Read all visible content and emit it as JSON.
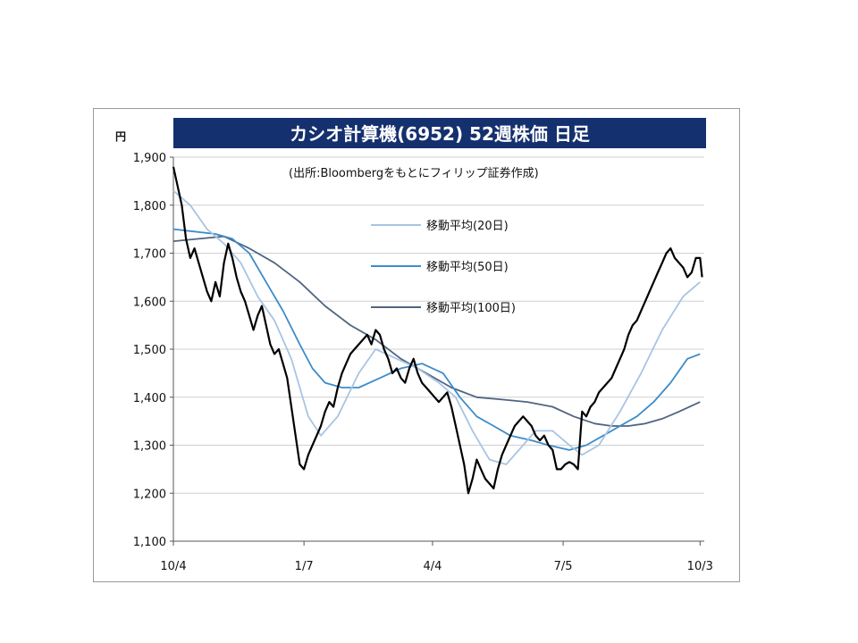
{
  "chart_data": {
    "type": "line",
    "title": "カシオ計算機(6952) 52週株価 日足",
    "subtitle": "(出所:Bloombergをもとにフィリップ証券作成)",
    "ylabel": "円",
    "xlabel": "",
    "ylim": [
      1100,
      1900
    ],
    "yticks": [
      "1,900",
      "1,800",
      "1,700",
      "1,600",
      "1,500",
      "1,400",
      "1,300",
      "1,200",
      "1,100"
    ],
    "xticks": [
      "10/4",
      "1/7",
      "4/4",
      "7/5",
      "10/3"
    ],
    "x_tick_positions": [
      0,
      62,
      123,
      185,
      250
    ],
    "x_range": [
      0,
      252
    ],
    "grid": true,
    "legend_position": "top-right",
    "colors": {
      "title_bg": "#15306e",
      "title_fg": "#ffffff",
      "price": "#000000",
      "ma20": "#a8c4e4",
      "ma50": "#3d8cc9",
      "ma100": "#4f6582",
      "grid": "#d0d0d0",
      "axis": "#555555"
    },
    "series": [
      {
        "key": "price",
        "name": "",
        "points": [
          [
            0,
            1880
          ],
          [
            4,
            1800
          ],
          [
            6,
            1730
          ],
          [
            8,
            1690
          ],
          [
            10,
            1710
          ],
          [
            12,
            1680
          ],
          [
            14,
            1650
          ],
          [
            16,
            1620
          ],
          [
            18,
            1600
          ],
          [
            20,
            1640
          ],
          [
            22,
            1610
          ],
          [
            24,
            1680
          ],
          [
            26,
            1720
          ],
          [
            28,
            1690
          ],
          [
            30,
            1650
          ],
          [
            32,
            1620
          ],
          [
            34,
            1600
          ],
          [
            36,
            1570
          ],
          [
            38,
            1540
          ],
          [
            40,
            1570
          ],
          [
            42,
            1590
          ],
          [
            44,
            1550
          ],
          [
            46,
            1510
          ],
          [
            48,
            1490
          ],
          [
            50,
            1500
          ],
          [
            52,
            1470
          ],
          [
            54,
            1440
          ],
          [
            56,
            1380
          ],
          [
            58,
            1320
          ],
          [
            60,
            1260
          ],
          [
            62,
            1250
          ],
          [
            64,
            1280
          ],
          [
            66,
            1300
          ],
          [
            68,
            1320
          ],
          [
            70,
            1340
          ],
          [
            72,
            1370
          ],
          [
            74,
            1390
          ],
          [
            76,
            1380
          ],
          [
            78,
            1420
          ],
          [
            80,
            1450
          ],
          [
            82,
            1470
          ],
          [
            84,
            1490
          ],
          [
            86,
            1500
          ],
          [
            88,
            1510
          ],
          [
            90,
            1520
          ],
          [
            92,
            1530
          ],
          [
            94,
            1510
          ],
          [
            96,
            1540
          ],
          [
            98,
            1530
          ],
          [
            100,
            1500
          ],
          [
            102,
            1480
          ],
          [
            104,
            1450
          ],
          [
            106,
            1460
          ],
          [
            108,
            1440
          ],
          [
            110,
            1430
          ],
          [
            112,
            1460
          ],
          [
            114,
            1480
          ],
          [
            116,
            1450
          ],
          [
            118,
            1430
          ],
          [
            120,
            1420
          ],
          [
            122,
            1410
          ],
          [
            124,
            1400
          ],
          [
            126,
            1390
          ],
          [
            128,
            1400
          ],
          [
            130,
            1410
          ],
          [
            132,
            1380
          ],
          [
            134,
            1340
          ],
          [
            136,
            1300
          ],
          [
            138,
            1260
          ],
          [
            140,
            1200
          ],
          [
            142,
            1230
          ],
          [
            144,
            1270
          ],
          [
            146,
            1250
          ],
          [
            148,
            1230
          ],
          [
            150,
            1220
          ],
          [
            152,
            1210
          ],
          [
            154,
            1250
          ],
          [
            156,
            1280
          ],
          [
            158,
            1300
          ],
          [
            160,
            1320
          ],
          [
            162,
            1340
          ],
          [
            164,
            1350
          ],
          [
            166,
            1360
          ],
          [
            168,
            1350
          ],
          [
            170,
            1340
          ],
          [
            172,
            1320
          ],
          [
            174,
            1310
          ],
          [
            176,
            1320
          ],
          [
            178,
            1300
          ],
          [
            180,
            1290
          ],
          [
            182,
            1250
          ],
          [
            184,
            1250
          ],
          [
            186,
            1260
          ],
          [
            188,
            1265
          ],
          [
            190,
            1260
          ],
          [
            192,
            1250
          ],
          [
            194,
            1370
          ],
          [
            196,
            1360
          ],
          [
            198,
            1380
          ],
          [
            200,
            1390
          ],
          [
            202,
            1410
          ],
          [
            204,
            1420
          ],
          [
            206,
            1430
          ],
          [
            208,
            1440
          ],
          [
            210,
            1460
          ],
          [
            212,
            1480
          ],
          [
            214,
            1500
          ],
          [
            216,
            1530
          ],
          [
            218,
            1550
          ],
          [
            220,
            1560
          ],
          [
            222,
            1580
          ],
          [
            224,
            1600
          ],
          [
            226,
            1620
          ],
          [
            228,
            1640
          ],
          [
            230,
            1660
          ],
          [
            232,
            1680
          ],
          [
            234,
            1700
          ],
          [
            236,
            1710
          ],
          [
            238,
            1690
          ],
          [
            240,
            1680
          ],
          [
            242,
            1670
          ],
          [
            244,
            1650
          ],
          [
            246,
            1660
          ],
          [
            248,
            1690
          ],
          [
            250,
            1690
          ],
          [
            251,
            1650
          ]
        ]
      },
      {
        "key": "ma20",
        "name": "移動平均(20日)",
        "points": [
          [
            0,
            1830
          ],
          [
            8,
            1800
          ],
          [
            16,
            1750
          ],
          [
            24,
            1720
          ],
          [
            32,
            1680
          ],
          [
            40,
            1610
          ],
          [
            48,
            1560
          ],
          [
            56,
            1480
          ],
          [
            64,
            1360
          ],
          [
            70,
            1320
          ],
          [
            78,
            1360
          ],
          [
            88,
            1450
          ],
          [
            96,
            1500
          ],
          [
            106,
            1480
          ],
          [
            116,
            1460
          ],
          [
            126,
            1430
          ],
          [
            134,
            1400
          ],
          [
            142,
            1330
          ],
          [
            150,
            1270
          ],
          [
            158,
            1260
          ],
          [
            166,
            1300
          ],
          [
            172,
            1330
          ],
          [
            180,
            1330
          ],
          [
            188,
            1300
          ],
          [
            194,
            1280
          ],
          [
            202,
            1300
          ],
          [
            212,
            1370
          ],
          [
            222,
            1450
          ],
          [
            232,
            1540
          ],
          [
            242,
            1610
          ],
          [
            250,
            1640
          ]
        ]
      },
      {
        "key": "ma50",
        "name": "移動平均(50日)",
        "points": [
          [
            0,
            1750
          ],
          [
            10,
            1745
          ],
          [
            20,
            1740
          ],
          [
            28,
            1730
          ],
          [
            36,
            1700
          ],
          [
            44,
            1640
          ],
          [
            52,
            1580
          ],
          [
            60,
            1510
          ],
          [
            66,
            1460
          ],
          [
            72,
            1430
          ],
          [
            80,
            1420
          ],
          [
            88,
            1420
          ],
          [
            98,
            1440
          ],
          [
            108,
            1460
          ],
          [
            118,
            1470
          ],
          [
            128,
            1450
          ],
          [
            136,
            1400
          ],
          [
            144,
            1360
          ],
          [
            152,
            1340
          ],
          [
            160,
            1320
          ],
          [
            170,
            1310
          ],
          [
            178,
            1300
          ],
          [
            188,
            1290
          ],
          [
            196,
            1300
          ],
          [
            204,
            1320
          ],
          [
            212,
            1340
          ],
          [
            220,
            1360
          ],
          [
            228,
            1390
          ],
          [
            236,
            1430
          ],
          [
            244,
            1480
          ],
          [
            250,
            1490
          ]
        ]
      },
      {
        "key": "ma100",
        "name": "移動平均(100日)",
        "points": [
          [
            0,
            1725
          ],
          [
            12,
            1730
          ],
          [
            24,
            1735
          ],
          [
            36,
            1710
          ],
          [
            48,
            1680
          ],
          [
            60,
            1640
          ],
          [
            72,
            1590
          ],
          [
            84,
            1550
          ],
          [
            96,
            1520
          ],
          [
            108,
            1480
          ],
          [
            120,
            1450
          ],
          [
            132,
            1420
          ],
          [
            144,
            1400
          ],
          [
            156,
            1395
          ],
          [
            168,
            1390
          ],
          [
            180,
            1380
          ],
          [
            190,
            1360
          ],
          [
            200,
            1345
          ],
          [
            208,
            1340
          ],
          [
            216,
            1340
          ],
          [
            224,
            1345
          ],
          [
            232,
            1355
          ],
          [
            240,
            1370
          ],
          [
            250,
            1390
          ]
        ]
      }
    ]
  }
}
